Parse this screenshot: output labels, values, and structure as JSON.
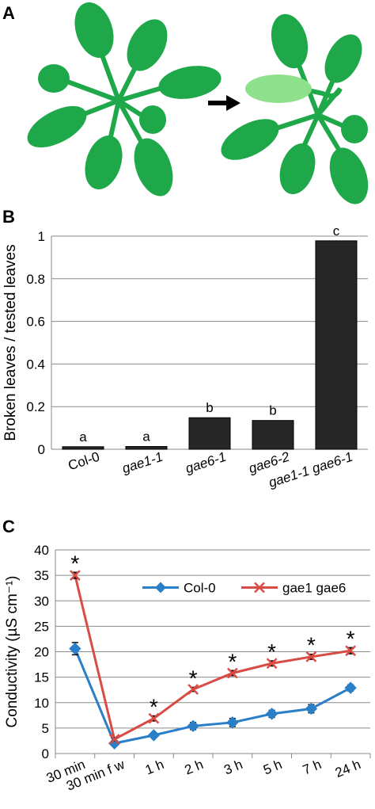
{
  "panels": {
    "a": {
      "letter": "A"
    },
    "b": {
      "letter": "B"
    },
    "c": {
      "letter": "C"
    }
  },
  "colors": {
    "leaf": "#1fa84a",
    "leaf_broken": "#8ee08c",
    "bar": "#262626",
    "col0": "#2a7fc9",
    "gae1gae6": "#d94c45"
  },
  "icons": {
    "arrow": "arrow-right-icon"
  },
  "chart_data": [
    {
      "type": "bar",
      "panel": "B",
      "ylabel": "Broken leaves / tested leaves",
      "ylim": [
        0,
        1
      ],
      "yticks": [
        "0",
        "0.2",
        "0.4",
        "0.6",
        "0.8",
        "1"
      ],
      "categories": [
        "Col-0",
        "gae1-1",
        "gae6-1",
        "gae6-2",
        "gae1-1 gae6-1"
      ],
      "values": [
        0.012,
        0.013,
        0.148,
        0.135,
        0.978
      ],
      "significance": [
        "a",
        "a",
        "b",
        "b",
        "c"
      ],
      "grid": true
    },
    {
      "type": "line",
      "panel": "C",
      "ylabel": "Conductivity (µS cm⁻¹)",
      "ylim": [
        0,
        40
      ],
      "yticks": [
        "0",
        "5",
        "10",
        "15",
        "20",
        "25",
        "30",
        "35",
        "40"
      ],
      "categories": [
        "30 min",
        "30 min f w",
        "1 h",
        "2 h",
        "3 h",
        "5 h",
        "7 h",
        "24 h"
      ],
      "series": [
        {
          "name": "Col-0",
          "marker": "diamond",
          "values": [
            20.6,
            2.0,
            3.6,
            5.4,
            6.1,
            7.8,
            8.8,
            12.9
          ],
          "errors": [
            1.2,
            0.3,
            0.4,
            0.7,
            0.8,
            0.7,
            0.8,
            0.6
          ]
        },
        {
          "name": "gae1 gae6",
          "marker": "x",
          "values": [
            35.0,
            2.8,
            6.9,
            12.6,
            15.8,
            17.7,
            19.0,
            20.2
          ],
          "errors": [
            0.6,
            0.3,
            0.5,
            0.4,
            0.5,
            0.5,
            0.5,
            0.6
          ]
        }
      ],
      "significant": [
        "*",
        "",
        "*",
        "*",
        "*",
        "*",
        "*",
        "*"
      ],
      "legend": "top-right",
      "grid": true
    }
  ]
}
